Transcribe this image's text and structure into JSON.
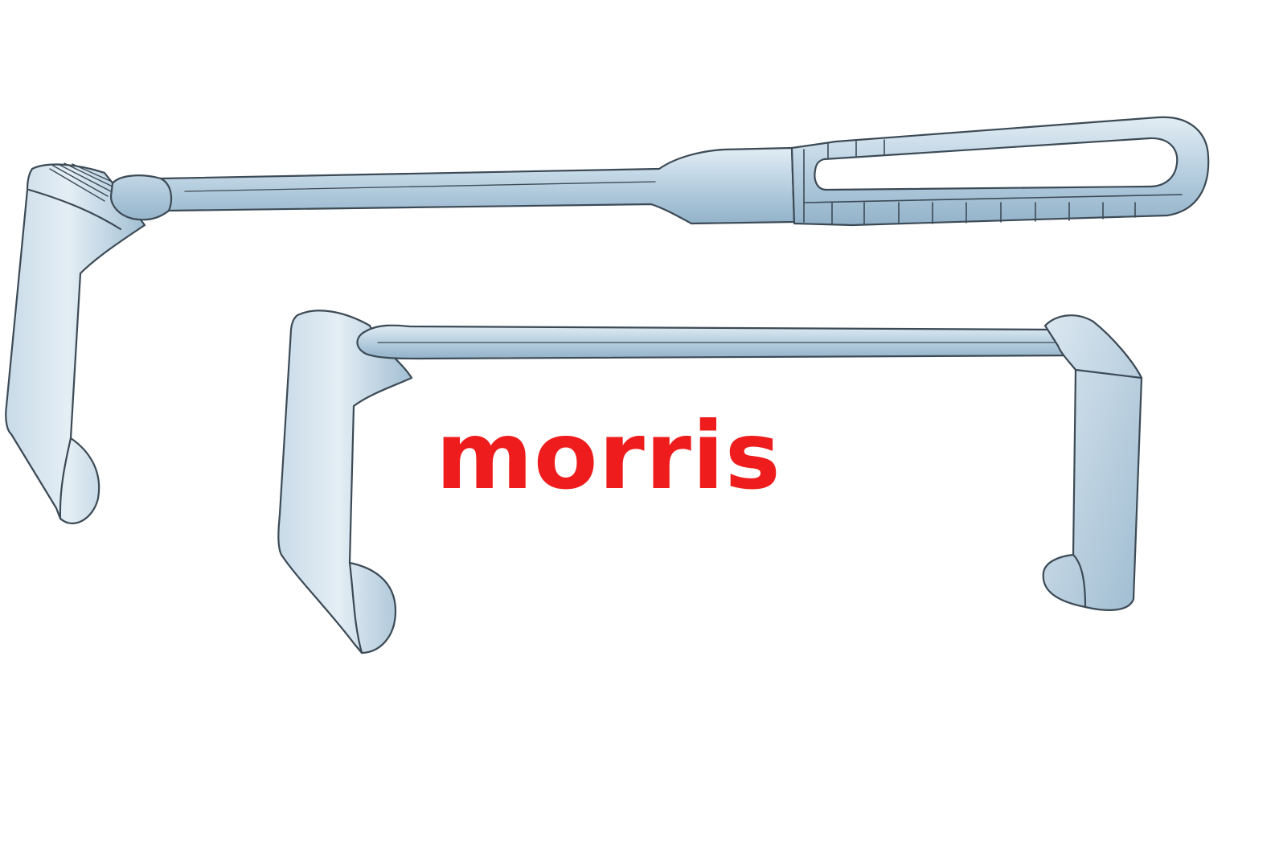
{
  "caption": {
    "text": "morris",
    "color": "#ee1c1c"
  },
  "illustration": {
    "subjects": [
      "handheld-retractor",
      "double-ended-retractor"
    ],
    "colors": {
      "metal_light": "#d3e3ee",
      "metal_mid": "#aec8da",
      "metal_dark": "#8eaec6",
      "outline": "#3c4a56"
    }
  }
}
